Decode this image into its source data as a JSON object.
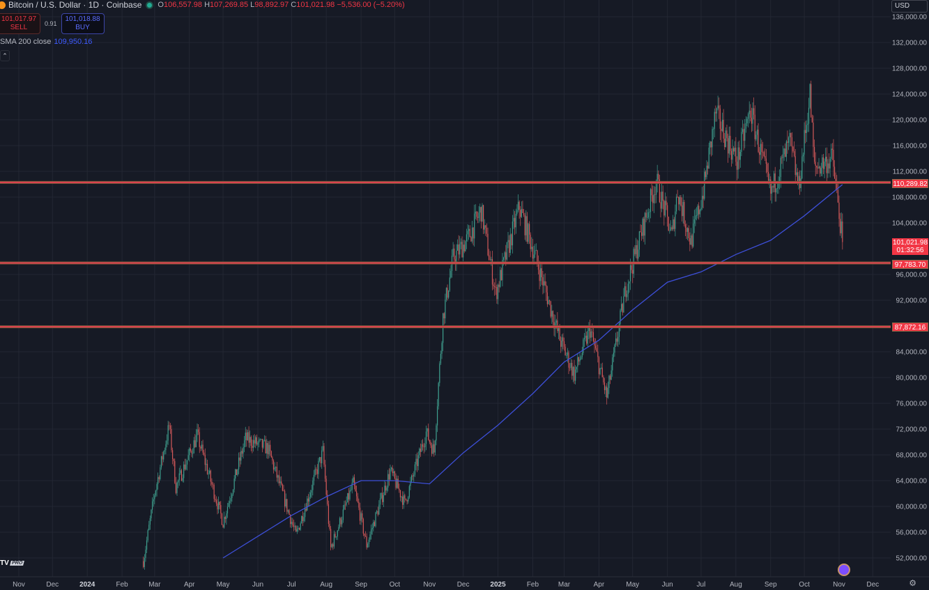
{
  "header": {
    "title": "Bitcoin / U.S. Dollar · 1D · Coinbase",
    "open_label": "O",
    "open": "106,557.98",
    "high_label": "H",
    "high": "107,269.85",
    "low_label": "L",
    "low": "98,892.97",
    "close_label": "C",
    "close": "101,021.98",
    "change": "−5,536.00 (−5.20%)",
    "currency": "USD"
  },
  "trade": {
    "sell_price": "101,017.97",
    "sell_label": "SELL",
    "spread": "0.91",
    "buy_price": "101,018.88",
    "buy_label": "BUY"
  },
  "indicator": {
    "name": "SMA 200 close",
    "value": "109,950.16"
  },
  "logo": {
    "text": "TV",
    "badge": "PRO"
  },
  "price_labels": {
    "line1": "110,289.82",
    "line2": "97,783.70",
    "line3": "87,872.16",
    "last_price": "101,021.98",
    "countdown": "01:32:56"
  },
  "colors": {
    "background": "#161a25",
    "up": "#3fa08f",
    "down": "#d4595a",
    "sma": "#3d4fd8",
    "level": "#e04050",
    "grid": "#232733"
  },
  "chart_data": {
    "type": "candlestick",
    "title": "Bitcoin / U.S. Dollar · 1D · Coinbase",
    "ylim": [
      50000,
      137000
    ],
    "y_ticks": [
      "136,000.00",
      "132,000.00",
      "128,000.00",
      "124,000.00",
      "120,000.00",
      "116,000.00",
      "112,000.00",
      "108,000.00",
      "104,000.00",
      "96,000.00",
      "92,000.00",
      "84,000.00",
      "80,000.00",
      "76,000.00",
      "72,000.00",
      "68,000.00",
      "64,000.00",
      "60,000.00",
      "56,000.00",
      "52,000.00"
    ],
    "y_tick_values": [
      136000,
      132000,
      128000,
      124000,
      120000,
      116000,
      112000,
      108000,
      104000,
      96000,
      92000,
      84000,
      80000,
      76000,
      72000,
      68000,
      64000,
      60000,
      56000,
      52000
    ],
    "x_ticks": [
      {
        "label": "Nov",
        "date": "2023-11-01"
      },
      {
        "label": "Dec",
        "date": "2023-12-01"
      },
      {
        "label": "2024",
        "date": "2024-01-01",
        "bold": true
      },
      {
        "label": "Feb",
        "date": "2024-02-01"
      },
      {
        "label": "Mar",
        "date": "2024-03-01"
      },
      {
        "label": "Apr",
        "date": "2024-04-01"
      },
      {
        "label": "May",
        "date": "2024-05-01"
      },
      {
        "label": "Jun",
        "date": "2024-06-01"
      },
      {
        "label": "Jul",
        "date": "2024-07-01"
      },
      {
        "label": "Aug",
        "date": "2024-08-01"
      },
      {
        "label": "Sep",
        "date": "2024-09-01"
      },
      {
        "label": "Oct",
        "date": "2024-10-01"
      },
      {
        "label": "Nov",
        "date": "2024-11-01"
      },
      {
        "label": "Dec",
        "date": "2024-12-01"
      },
      {
        "label": "2025",
        "date": "2025-01-01",
        "bold": true
      },
      {
        "label": "Feb",
        "date": "2025-02-01"
      },
      {
        "label": "Mar",
        "date": "2025-03-01"
      },
      {
        "label": "Apr",
        "date": "2025-04-01"
      },
      {
        "label": "May",
        "date": "2025-05-01"
      },
      {
        "label": "Jun",
        "date": "2025-06-01"
      },
      {
        "label": "Jul",
        "date": "2025-07-01"
      },
      {
        "label": "Aug",
        "date": "2025-08-01"
      },
      {
        "label": "Sep",
        "date": "2025-09-01"
      },
      {
        "label": "Oct",
        "date": "2025-10-01"
      },
      {
        "label": "Nov",
        "date": "2025-11-01"
      },
      {
        "label": "Dec",
        "date": "2025-12-01"
      }
    ],
    "price_path": [
      [
        "2024-02-20",
        51500
      ],
      [
        "2024-03-01",
        62000
      ],
      [
        "2024-03-14",
        72500
      ],
      [
        "2024-03-20",
        63000
      ],
      [
        "2024-04-08",
        71000
      ],
      [
        "2024-05-01",
        57500
      ],
      [
        "2024-05-21",
        70500
      ],
      [
        "2024-06-10",
        69000
      ],
      [
        "2024-07-05",
        55500
      ],
      [
        "2024-07-29",
        68500
      ],
      [
        "2024-08-05",
        53500
      ],
      [
        "2024-08-25",
        63500
      ],
      [
        "2024-09-06",
        54000
      ],
      [
        "2024-09-27",
        65500
      ],
      [
        "2024-10-10",
        60500
      ],
      [
        "2024-10-29",
        71500
      ],
      [
        "2024-11-05",
        68500
      ],
      [
        "2024-11-13",
        89500
      ],
      [
        "2024-11-22",
        98500
      ],
      [
        "2024-12-05",
        101500
      ],
      [
        "2024-12-17",
        106000
      ],
      [
        "2024-12-30",
        93000
      ],
      [
        "2025-01-20",
        106500
      ],
      [
        "2025-02-03",
        99000
      ],
      [
        "2025-02-25",
        86000
      ],
      [
        "2025-03-10",
        80500
      ],
      [
        "2025-03-24",
        87500
      ],
      [
        "2025-04-08",
        77000
      ],
      [
        "2025-04-25",
        94000
      ],
      [
        "2025-05-22",
        110500
      ],
      [
        "2025-06-05",
        102000
      ],
      [
        "2025-06-10",
        109000
      ],
      [
        "2025-06-22",
        101000
      ],
      [
        "2025-07-03",
        109000
      ],
      [
        "2025-07-14",
        121000
      ],
      [
        "2025-08-02",
        113500
      ],
      [
        "2025-08-14",
        121500
      ],
      [
        "2025-09-01",
        108500
      ],
      [
        "2025-09-18",
        116500
      ],
      [
        "2025-09-26",
        109500
      ],
      [
        "2025-10-06",
        124000
      ],
      [
        "2025-10-10",
        112500
      ],
      [
        "2025-10-26",
        114000
      ],
      [
        "2025-11-04",
        101022
      ]
    ],
    "sma_200": [
      [
        "2024-05-01",
        52000
      ],
      [
        "2024-07-01",
        58600
      ],
      [
        "2024-08-01",
        61500
      ],
      [
        "2024-09-01",
        64000
      ],
      [
        "2024-10-01",
        64000
      ],
      [
        "2024-11-01",
        63500
      ],
      [
        "2024-12-01",
        68300
      ],
      [
        "2025-01-01",
        72600
      ],
      [
        "2025-02-01",
        77500
      ],
      [
        "2025-03-01",
        82400
      ],
      [
        "2025-04-01",
        85800
      ],
      [
        "2025-05-01",
        90500
      ],
      [
        "2025-06-01",
        94800
      ],
      [
        "2025-07-01",
        96400
      ],
      [
        "2025-08-01",
        99100
      ],
      [
        "2025-09-01",
        101300
      ],
      [
        "2025-10-01",
        105100
      ],
      [
        "2025-11-04",
        109950
      ]
    ],
    "horizontal_levels": [
      110289.82,
      97783.7,
      87872.16
    ]
  }
}
